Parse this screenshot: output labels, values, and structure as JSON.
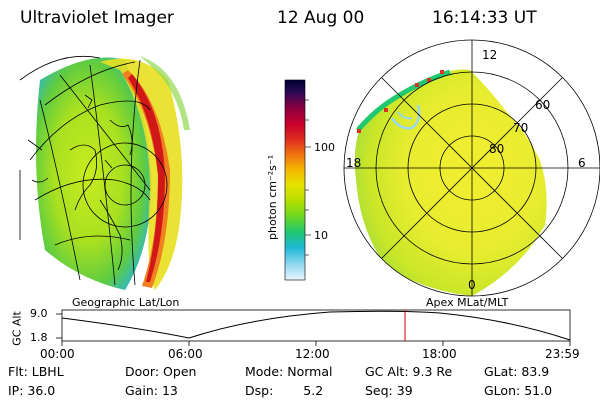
{
  "header": {
    "instrument": "Ultraviolet Imager",
    "date": "12 Aug 00",
    "time": "16:14:33 UT"
  },
  "left_panel": {
    "label": "Geographic Lat/Lon"
  },
  "right_panel": {
    "label": "Apex MLat/MLT",
    "lat_labels": [
      "60",
      "70",
      "80"
    ],
    "mlt_labels": {
      "top": "12",
      "left": "18",
      "right": "6",
      "bottom": "0"
    }
  },
  "colorbar": {
    "unit_label": "photon cm⁻²s⁻¹",
    "tick_labels": [
      "100",
      "10"
    ],
    "colors": [
      "#000033",
      "#2a0a55",
      "#8a0040",
      "#c8002a",
      "#e03020",
      "#f07a10",
      "#f5b800",
      "#e8e000",
      "#b8e000",
      "#70d820",
      "#20c870",
      "#20b8d8",
      "#90d8f0",
      "#e8f4fb"
    ]
  },
  "timeline": {
    "ylabel": "GC Alt",
    "y_ticks": [
      "9.0",
      "1.8"
    ],
    "x_ticks": [
      "00:00",
      "06:00",
      "12:00",
      "18:00",
      "23:59"
    ],
    "current_time_marker": "16:14",
    "marker_color": "#cc0000"
  },
  "info": {
    "row1": [
      {
        "label": "Flt:",
        "value": "LBHL"
      },
      {
        "label": "Door:",
        "value": "Open"
      },
      {
        "label": "Mode:",
        "value": "Normal"
      },
      {
        "label": "GC Alt:",
        "value": "9.3 Re"
      },
      {
        "label": "GLat:",
        "value": "83.9"
      }
    ],
    "row2": [
      {
        "label": "IP:",
        "value": "36.0"
      },
      {
        "label": "Gain:",
        "value": "13"
      },
      {
        "label": "Dsp:",
        "value": "5.2"
      },
      {
        "label": "Seq:",
        "value": "39"
      },
      {
        "label": "GLon:",
        "value": "51.0"
      }
    ]
  }
}
